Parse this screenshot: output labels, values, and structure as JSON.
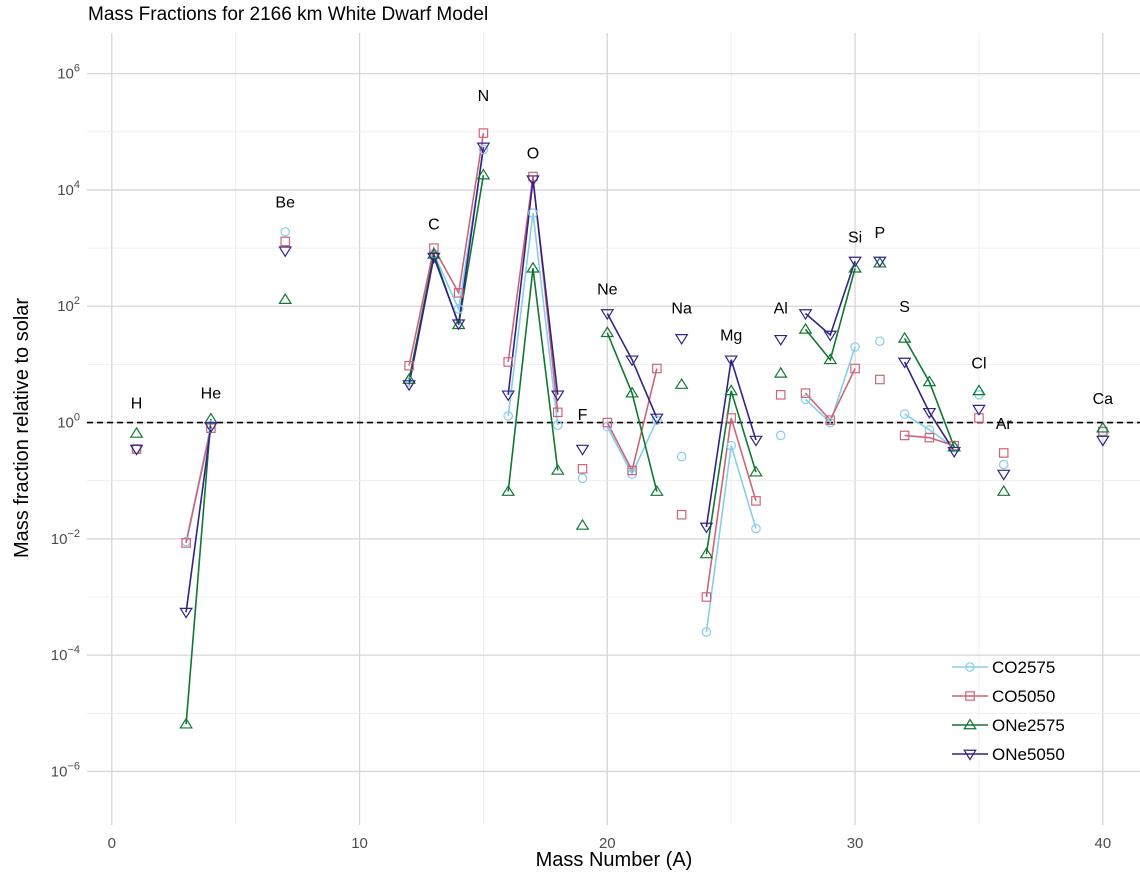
{
  "chart_data": {
    "type": "scatter",
    "title": "Mass Fractions for 2166 km White Dwarf Model",
    "xlabel": "Mass Number (A)",
    "ylabel": "Mass fraction relative to solar",
    "xlim": [
      -1,
      41.5
    ],
    "ylim": [
      1.2e-07,
      5000000.0
    ],
    "yscale": "log",
    "grid": true,
    "legend_position": "bottom-right",
    "reference_line": {
      "y": 1,
      "style": "dashed"
    },
    "x_ticks": [
      0,
      10,
      20,
      30,
      40
    ],
    "y_ticks": [
      {
        "value": 1e-06,
        "base": "10",
        "exp": "−6"
      },
      {
        "value": 0.0001,
        "base": "10",
        "exp": "−4"
      },
      {
        "value": 0.01,
        "base": "10",
        "exp": "−2"
      },
      {
        "value": 1,
        "base": "10",
        "exp": "0"
      },
      {
        "value": 100.0,
        "base": "10",
        "exp": "2"
      },
      {
        "value": 10000.0,
        "base": "10",
        "exp": "4"
      },
      {
        "value": 1000000.0,
        "base": "10",
        "exp": "6"
      }
    ],
    "element_labels": [
      {
        "text": "H",
        "x": 1,
        "y": 1.75
      },
      {
        "text": "He",
        "x": 4,
        "y": 2.6
      },
      {
        "text": "Be",
        "x": 7,
        "y": 5000
      },
      {
        "text": "C",
        "x": 13,
        "y": 2100
      },
      {
        "text": "N",
        "x": 15,
        "y": 340000
      },
      {
        "text": "O",
        "x": 17,
        "y": 35000
      },
      {
        "text": "F",
        "x": 19,
        "y": 1.1
      },
      {
        "text": "Ne",
        "x": 20,
        "y": 160
      },
      {
        "text": "Na",
        "x": 23,
        "y": 75
      },
      {
        "text": "Mg",
        "x": 25,
        "y": 26
      },
      {
        "text": "Al",
        "x": 27,
        "y": 75
      },
      {
        "text": "Si",
        "x": 30,
        "y": 1250
      },
      {
        "text": "P",
        "x": 31,
        "y": 1500
      },
      {
        "text": "S",
        "x": 32,
        "y": 80
      },
      {
        "text": "Cl",
        "x": 35,
        "y": 8.5
      },
      {
        "text": "Ar",
        "x": 36,
        "y": 0.78
      },
      {
        "text": "Ca",
        "x": 40,
        "y": 2.1
      }
    ],
    "series": [
      {
        "name": "CO2575",
        "color": "#87ceeb",
        "marker": "circle",
        "points": [
          [
            1,
            0.35
          ],
          [
            3,
            0.009
          ],
          [
            4,
            0.9
          ],
          [
            7,
            1900
          ],
          [
            12,
            5
          ],
          [
            13,
            800
          ],
          [
            14,
            90
          ],
          [
            15,
            50000
          ],
          [
            16,
            1.3
          ],
          [
            17,
            4000
          ],
          [
            18,
            0.9
          ],
          [
            19,
            0.11
          ],
          [
            20,
            0.85
          ],
          [
            21,
            0.13
          ],
          [
            22,
            1.1
          ],
          [
            23,
            0.26
          ],
          [
            24,
            0.00025
          ],
          [
            25,
            0.4
          ],
          [
            26,
            0.015
          ],
          [
            27,
            0.6
          ],
          [
            28,
            2.5
          ],
          [
            29,
            1.0
          ],
          [
            30,
            20
          ],
          [
            31,
            25
          ],
          [
            32,
            1.4
          ],
          [
            33,
            0.75
          ],
          [
            34,
            0.37
          ],
          [
            35,
            3.0
          ],
          [
            36,
            0.19
          ],
          [
            40,
            0.7
          ]
        ],
        "lines": [
          [
            3,
            4
          ],
          [
            12,
            13,
            14,
            15
          ],
          [
            16,
            17,
            18
          ],
          [
            20,
            21,
            22
          ],
          [
            24,
            25,
            26
          ],
          [
            28,
            29,
            30
          ],
          [
            32,
            33,
            34
          ]
        ]
      },
      {
        "name": "CO5050",
        "color": "#cc6677",
        "marker": "square",
        "points": [
          [
            1,
            0.35
          ],
          [
            3,
            0.0085
          ],
          [
            4,
            0.8
          ],
          [
            7,
            1300
          ],
          [
            12,
            9.5
          ],
          [
            13,
            1000
          ],
          [
            14,
            170
          ],
          [
            15,
            95000
          ],
          [
            16,
            11
          ],
          [
            17,
            17000
          ],
          [
            18,
            1.5
          ],
          [
            19,
            0.16
          ],
          [
            20,
            1.0
          ],
          [
            21,
            0.15
          ],
          [
            22,
            8.5
          ],
          [
            23,
            0.026
          ],
          [
            24,
            0.001
          ],
          [
            25,
            1.2
          ],
          [
            26,
            0.045
          ],
          [
            27,
            3.0
          ],
          [
            28,
            3.2
          ],
          [
            29,
            1.1
          ],
          [
            30,
            8.5
          ],
          [
            31,
            5.5
          ],
          [
            32,
            0.6
          ],
          [
            33,
            0.55
          ],
          [
            34,
            0.4
          ],
          [
            35,
            1.2
          ],
          [
            36,
            0.3
          ],
          [
            40,
            0.7
          ]
        ],
        "lines": [
          [
            3,
            4
          ],
          [
            12,
            13,
            14,
            15
          ],
          [
            16,
            17,
            18
          ],
          [
            20,
            21,
            22
          ],
          [
            24,
            25,
            26
          ],
          [
            28,
            29,
            30
          ],
          [
            32,
            33,
            34
          ]
        ]
      },
      {
        "name": "ONe2575",
        "color": "#117733",
        "marker": "triangle-up",
        "points": [
          [
            1,
            0.65
          ],
          [
            3,
            6.5e-06
          ],
          [
            4,
            1.15
          ],
          [
            7,
            130
          ],
          [
            12,
            5.5
          ],
          [
            13,
            780
          ],
          [
            14,
            48
          ],
          [
            15,
            18000
          ],
          [
            16,
            0.065
          ],
          [
            17,
            450
          ],
          [
            18,
            0.15
          ],
          [
            19,
            0.017
          ],
          [
            20,
            35
          ],
          [
            21,
            3.2
          ],
          [
            22,
            0.065
          ],
          [
            23,
            4.5
          ],
          [
            24,
            0.0055
          ],
          [
            25,
            3.5
          ],
          [
            26,
            0.14
          ],
          [
            27,
            7.0
          ],
          [
            28,
            40
          ],
          [
            29,
            12
          ],
          [
            30,
            450
          ],
          [
            31,
            550
          ],
          [
            32,
            28
          ],
          [
            33,
            5.0
          ],
          [
            34,
            0.38
          ],
          [
            35,
            3.5
          ],
          [
            36,
            0.065
          ],
          [
            40,
            0.8
          ]
        ],
        "lines": [
          [
            3,
            4
          ],
          [
            12,
            13,
            14,
            15
          ],
          [
            16,
            17,
            18
          ],
          [
            20,
            21,
            22
          ],
          [
            24,
            25,
            26
          ],
          [
            28,
            29,
            30
          ],
          [
            32,
            33,
            34
          ]
        ]
      },
      {
        "name": "ONe5050",
        "color": "#332288",
        "marker": "triangle-down",
        "points": [
          [
            1,
            0.35
          ],
          [
            3,
            0.00055
          ],
          [
            4,
            0.85
          ],
          [
            7,
            900
          ],
          [
            12,
            4.5
          ],
          [
            13,
            700
          ],
          [
            14,
            50
          ],
          [
            15,
            55000
          ],
          [
            16,
            3.0
          ],
          [
            17,
            15000
          ],
          [
            18,
            3.0
          ],
          [
            19,
            0.35
          ],
          [
            20,
            75
          ],
          [
            21,
            12
          ],
          [
            22,
            1.2
          ],
          [
            23,
            28
          ],
          [
            24,
            0.016
          ],
          [
            25,
            12
          ],
          [
            26,
            0.5
          ],
          [
            27,
            27
          ],
          [
            28,
            75
          ],
          [
            29,
            32
          ],
          [
            30,
            600
          ],
          [
            31,
            600
          ],
          [
            32,
            11
          ],
          [
            33,
            1.5
          ],
          [
            34,
            0.32
          ],
          [
            35,
            1.7
          ],
          [
            36,
            0.13
          ],
          [
            40,
            0.5
          ]
        ],
        "lines": [
          [
            3,
            4
          ],
          [
            12,
            13,
            14,
            15
          ],
          [
            16,
            17,
            18
          ],
          [
            20,
            21,
            22
          ],
          [
            24,
            25,
            26
          ],
          [
            28,
            29,
            30
          ],
          [
            32,
            33,
            34
          ]
        ]
      }
    ]
  }
}
